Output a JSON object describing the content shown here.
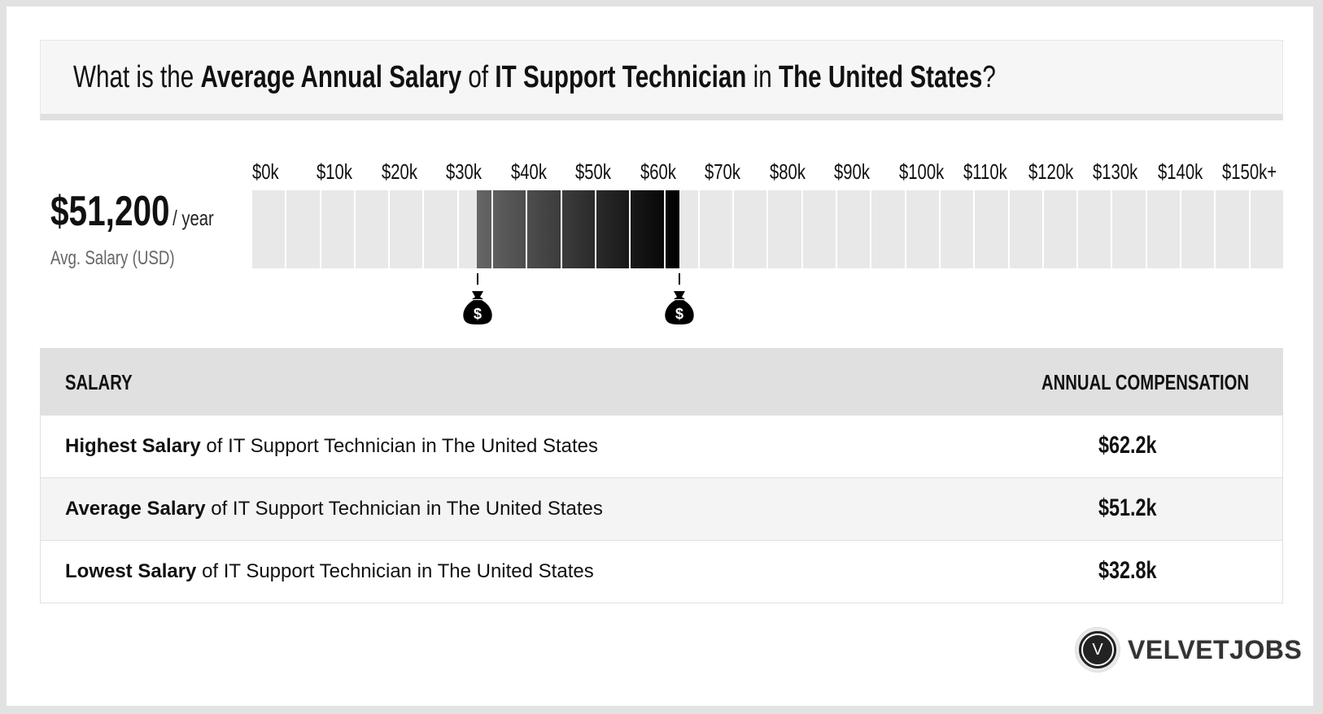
{
  "header": {
    "q1": "What is the ",
    "b1": "Average Annual Salary",
    "q2": " of ",
    "b2": "IT Support Technician",
    "q3": " in ",
    "b3": "The United States",
    "q4": "?"
  },
  "average": {
    "value": "$51,200",
    "unit": "/ year",
    "label": "Avg. Salary (USD)"
  },
  "chart_data": {
    "type": "range-bar",
    "tick_labels": [
      "$0k",
      "$10k",
      "$20k",
      "$30k",
      "$40k",
      "$50k",
      "$60k",
      "$70k",
      "$80k",
      "$90k",
      "$100k",
      "$110k",
      "$120k",
      "$130k",
      "$140k",
      "$150k+"
    ],
    "xlim": [
      0,
      150000
    ],
    "segment_size": 5000,
    "range": {
      "low": 32800,
      "high": 62200
    },
    "colors": {
      "empty": "#e8e8e8",
      "fill_start": "#666666",
      "fill_end": "#000000"
    },
    "markers": [
      {
        "value": 32800,
        "icon": "money-bag-icon"
      },
      {
        "value": 62200,
        "icon": "money-bag-icon"
      }
    ]
  },
  "table": {
    "headers": [
      "SALARY",
      "ANNUAL COMPENSATION"
    ],
    "rows": [
      {
        "bold": "Highest Salary",
        "rest": " of IT Support Technician in The United States",
        "amount": "$62.2k"
      },
      {
        "bold": "Average Salary",
        "rest": " of IT Support Technician in The United States",
        "amount": "$51.2k"
      },
      {
        "bold": "Lowest Salary",
        "rest": " of IT Support Technician in The United States",
        "amount": "$32.8k"
      }
    ]
  },
  "logo": {
    "letter": "V",
    "name": "VELVETJOBS"
  }
}
